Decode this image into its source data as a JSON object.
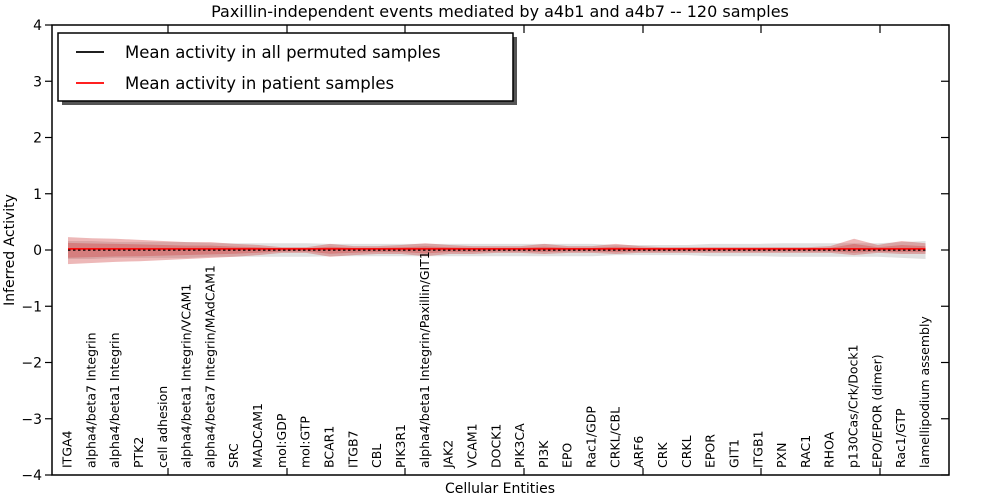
{
  "figure": {
    "background": "#ffffff",
    "frame_color": "#000000"
  },
  "chart_data": {
    "type": "line",
    "title": "Paxillin-independent events mediated by a4b1 and a4b7 -- 120 samples",
    "xlabel": "Cellular Entities",
    "ylabel": "Inferred Activity",
    "ylim": [
      -4,
      4
    ],
    "yticks": [
      4,
      3,
      2,
      1,
      0,
      -1,
      -2,
      -3,
      -4
    ],
    "grid": false,
    "legend": {
      "position": "upper left",
      "shadow": true,
      "entries": [
        {
          "label": "Mean activity in all permuted samples",
          "color": "#000000",
          "style": "solid"
        },
        {
          "label": "Mean activity in patient samples",
          "color": "#ff0000",
          "style": "solid"
        }
      ]
    },
    "categories": [
      "ITGA4",
      "alpha4/beta7 Integrin",
      "alpha4/beta1 Integrin",
      "PTK2",
      "cell adhesion",
      "alpha4/beta1 Integrin/VCAM1",
      "alpha4/beta7 Integrin/MAdCAM1",
      "SRC",
      "MADCAM1",
      "mol:GDP",
      "mol:GTP",
      "BCAR1",
      "ITGB7",
      "CBL",
      "PIK3R1",
      "alpha4/beta1 Integrin/Paxillin/GIT1",
      "JAK2",
      "VCAM1",
      "DOCK1",
      "PIK3CA",
      "PI3K",
      "EPO",
      "Rac1/GDP",
      "CRKL/CBL",
      "ARF6",
      "CRK",
      "CRKL",
      "EPOR",
      "GIT1",
      "ITGB1",
      "PXN",
      "RAC1",
      "RHOA",
      "p130Cas/Crk/Dock1",
      "EPO/EPOR (dimer)",
      "Rac1/GTP",
      "lamellipodium assembly"
    ],
    "series": [
      {
        "name": "Mean activity in all permuted samples",
        "color": "#000000",
        "line_style": "dashed",
        "constant_value": 0.0
      },
      {
        "name": "Mean activity in patient samples",
        "color": "#ff0000",
        "line_style": "solid",
        "constant_value": 0.02
      }
    ],
    "bands": {
      "permuted_std": {
        "color": "#999999",
        "opacity": 0.3,
        "halfwidth": [
          0.16,
          0.16,
          0.14,
          0.14,
          0.14,
          0.14,
          0.12,
          0.12,
          0.12,
          0.12,
          0.12,
          0.11,
          0.11,
          0.11,
          0.11,
          0.11,
          0.11,
          0.11,
          0.11,
          0.11,
          0.11,
          0.11,
          0.11,
          0.09,
          0.09,
          0.09,
          0.09,
          0.11,
          0.11,
          0.11,
          0.12,
          0.12,
          0.12,
          0.12,
          0.12,
          0.14,
          0.16
        ]
      },
      "patient_std": {
        "color": "#cc3b3b",
        "opacity": 0.36,
        "upper": [
          0.23,
          0.21,
          0.2,
          0.18,
          0.16,
          0.14,
          0.14,
          0.11,
          0.09,
          0.05,
          0.05,
          0.11,
          0.07,
          0.07,
          0.09,
          0.12,
          0.09,
          0.07,
          0.07,
          0.07,
          0.11,
          0.07,
          0.07,
          0.11,
          0.07,
          0.05,
          0.05,
          0.05,
          0.05,
          0.05,
          0.05,
          0.05,
          0.07,
          0.2,
          0.09,
          0.16,
          0.12
        ],
        "lower": [
          0.25,
          0.23,
          0.21,
          0.2,
          0.18,
          0.16,
          0.14,
          0.12,
          0.09,
          0.05,
          0.05,
          0.12,
          0.09,
          0.07,
          0.07,
          0.11,
          0.07,
          0.07,
          0.05,
          0.05,
          0.07,
          0.05,
          0.05,
          0.07,
          0.05,
          0.05,
          0.05,
          0.05,
          0.05,
          0.05,
          0.05,
          0.05,
          0.05,
          0.09,
          0.05,
          0.07,
          0.07
        ],
        "inner_core_scale": 0.55
      }
    }
  }
}
